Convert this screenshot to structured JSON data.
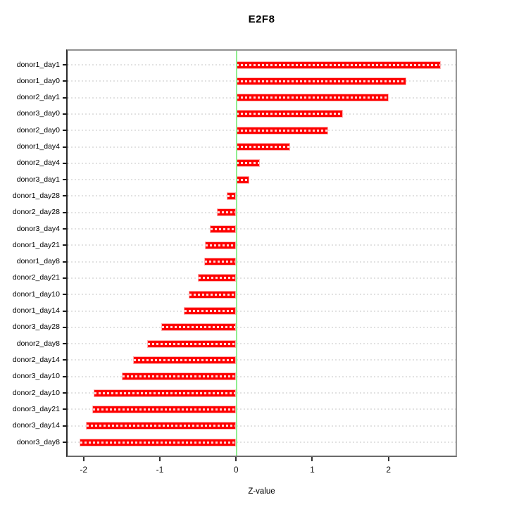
{
  "title": "E2F8",
  "chart_data": {
    "type": "bar",
    "orientation": "horizontal",
    "title": "E2F8",
    "xlabel": "Z-value",
    "categories": [
      "donor1_day1",
      "donor1_day0",
      "donor2_day1",
      "donor3_day0",
      "donor2_day0",
      "donor1_day4",
      "donor2_day4",
      "donor3_day1",
      "donor1_day28",
      "donor2_day28",
      "donor3_day4",
      "donor1_day21",
      "donor1_day8",
      "donor2_day21",
      "donor1_day10",
      "donor1_day14",
      "donor3_day28",
      "donor2_day8",
      "donor2_day14",
      "donor3_day10",
      "donor2_day10",
      "donor3_day21",
      "donor3_day14",
      "donor3_day8"
    ],
    "values": [
      2.69,
      2.23,
      2.0,
      1.4,
      1.21,
      0.71,
      0.31,
      0.17,
      -0.12,
      -0.25,
      -0.34,
      -0.41,
      -0.42,
      -0.5,
      -0.62,
      -0.69,
      -0.98,
      -1.17,
      -1.35,
      -1.5,
      -1.87,
      -1.89,
      -1.97,
      -2.05
    ],
    "xlim": [
      -2.21,
      2.88
    ],
    "x_ticks": [
      "-2",
      "-1",
      "0",
      "1",
      "2"
    ],
    "x_tick_values": [
      -2,
      -1,
      0,
      1,
      2
    ],
    "grid": "dashed horizontal line per category, on",
    "legend": "none",
    "colors": {
      "bar_fill": "#fe0000",
      "bar_edge": "#ffb0b0",
      "bar_dash": "rgba(255,255,255,0.85)",
      "zero_line": "#90ee90",
      "gridline": "#e2e2e2",
      "frame": "#8a8a8a",
      "tick": "#1a1a1a"
    }
  }
}
